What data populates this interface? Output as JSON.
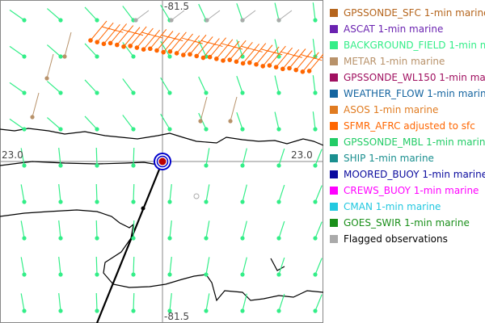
{
  "map": {
    "lon_top": "-81.5",
    "lon_bottom": "-81.5",
    "lat_left": "23.0",
    "lat_right": "23.0"
  },
  "legend": {
    "items": [
      {
        "label": "GPSSONDE_SFC 1-min marine",
        "color": "#b5651d"
      },
      {
        "label": "ASCAT 1-min marine",
        "color": "#6a22b0"
      },
      {
        "label": "BACKGROUND_FIELD 1-min marine",
        "color": "#33ee88"
      },
      {
        "label": "METAR 1-min marine",
        "color": "#b8926a"
      },
      {
        "label": "GPSSONDE_WL150 1-min marine",
        "color": "#a01060"
      },
      {
        "label": "WEATHER_FLOW 1-min marine",
        "color": "#1565a0"
      },
      {
        "label": "ASOS 1-min marine",
        "color": "#e07b20"
      },
      {
        "label": "SFMR_AFRC adjusted to sfc",
        "color": "#ff6600"
      },
      {
        "label": "GPSSONDE_MBL 1-min marine",
        "color": "#22cc66"
      },
      {
        "label": "SHIP 1-min marine",
        "color": "#1a8f8f"
      },
      {
        "label": "MOORED_BUOY 1-min marine",
        "color": "#0a0a9e"
      },
      {
        "label": "CREWS_BUOY 1-min marine",
        "color": "#ff00ff"
      },
      {
        "label": "CMAN 1-min marine",
        "color": "#22c8e0"
      },
      {
        "label": "GOES_SWIR 1-min marine",
        "color": "#1a8f1a"
      },
      {
        "label": "Flagged observations",
        "color": "#aaaaaa"
      }
    ]
  }
}
